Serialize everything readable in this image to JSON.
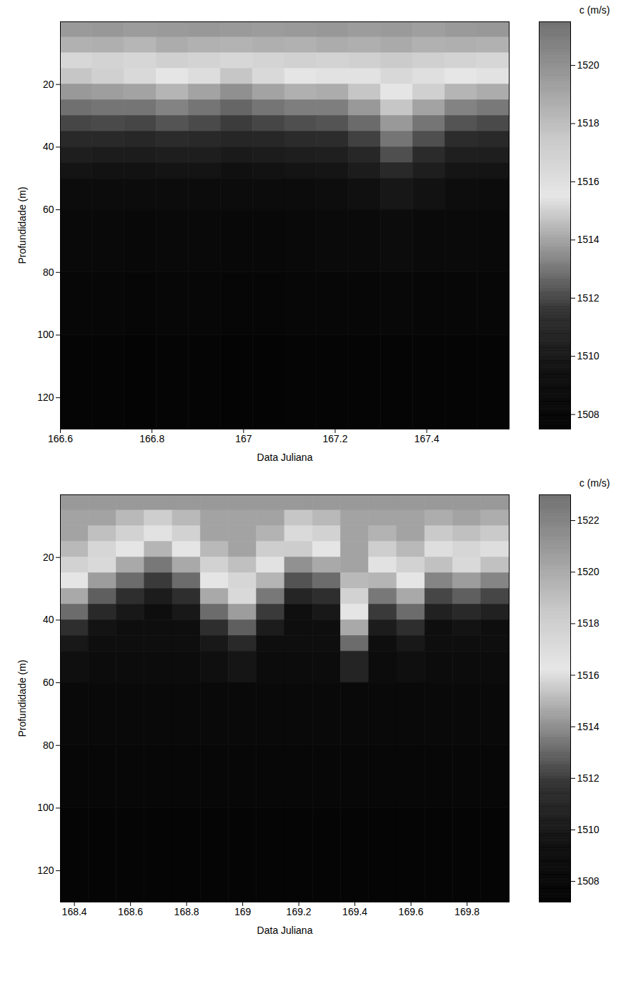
{
  "chart_data": [
    {
      "type": "heatmap",
      "x_label": "Data Juliana",
      "y_label": "Profundidade (m)",
      "xlim": [
        166.6,
        167.58
      ],
      "xticks": [
        166.6,
        166.8,
        167,
        167.2,
        167.4
      ],
      "ylim": [
        0,
        130
      ],
      "yticks": [
        20,
        40,
        60,
        80,
        100,
        120
      ],
      "x_bins": [
        166.6,
        166.67,
        166.74,
        166.81,
        166.88,
        166.95,
        167.02,
        167.09,
        167.16,
        167.23,
        167.3,
        167.37,
        167.44,
        167.51,
        167.58
      ],
      "y_bins": [
        0,
        5,
        10,
        15,
        20,
        25,
        30,
        35,
        40,
        45,
        50,
        60,
        80,
        100,
        130
      ],
      "values": [
        [
          1519.5,
          1519.6,
          1519.4,
          1519.5,
          1519.6,
          1519.5,
          1519.4,
          1519.5,
          1519.6,
          1519.4,
          1519.5,
          1519.3,
          1519.5,
          1519.6
        ],
        [
          1518.5,
          1518.6,
          1518.3,
          1518.7,
          1518.5,
          1518.4,
          1518.6,
          1518.5,
          1518.7,
          1518.6,
          1518.8,
          1518.5,
          1518.6,
          1518.5
        ],
        [
          1516.5,
          1516.8,
          1516.6,
          1517.0,
          1516.8,
          1516.5,
          1516.7,
          1516.9,
          1516.8,
          1517.0,
          1517.3,
          1517.0,
          1516.8,
          1516.6
        ],
        [
          1514.8,
          1515.0,
          1515.2,
          1515.6,
          1515.3,
          1514.8,
          1515.2,
          1515.6,
          1515.4,
          1515.8,
          1516.4,
          1516.0,
          1515.5,
          1515.4
        ],
        [
          1513.8,
          1513.9,
          1514.0,
          1514.4,
          1514.0,
          1513.6,
          1514.0,
          1514.3,
          1514.2,
          1514.8,
          1515.6,
          1515.0,
          1514.4,
          1514.2
        ],
        [
          1512.9,
          1513.0,
          1513.0,
          1513.3,
          1513.0,
          1512.7,
          1513.0,
          1513.2,
          1513.2,
          1513.8,
          1514.8,
          1514.0,
          1513.3,
          1513.1
        ],
        [
          1512.0,
          1512.1,
          1512.0,
          1512.3,
          1512.1,
          1511.8,
          1512.0,
          1512.2,
          1512.3,
          1512.8,
          1513.8,
          1513.0,
          1512.3,
          1512.1
        ],
        [
          1511.2,
          1511.2,
          1511.1,
          1511.3,
          1511.2,
          1511.0,
          1511.1,
          1511.3,
          1511.4,
          1511.9,
          1513.0,
          1512.2,
          1511.4,
          1511.2
        ],
        [
          1510.5,
          1510.4,
          1510.4,
          1510.5,
          1510.5,
          1510.3,
          1510.4,
          1510.5,
          1510.6,
          1511.1,
          1512.2,
          1511.3,
          1510.6,
          1510.5
        ],
        [
          1509.9,
          1509.8,
          1509.8,
          1509.9,
          1509.9,
          1509.7,
          1509.8,
          1509.9,
          1510.0,
          1510.4,
          1511.2,
          1510.5,
          1510.0,
          1509.9
        ],
        [
          1509.4,
          1509.3,
          1509.3,
          1509.4,
          1509.4,
          1509.3,
          1509.3,
          1509.4,
          1509.5,
          1509.7,
          1510.1,
          1509.8,
          1509.5,
          1509.4
        ],
        [
          1508.9,
          1508.9,
          1508.8,
          1508.9,
          1508.9,
          1508.8,
          1508.8,
          1508.9,
          1509.0,
          1509.1,
          1509.3,
          1509.1,
          1509.0,
          1508.9
        ],
        [
          1508.5,
          1508.5,
          1508.4,
          1508.5,
          1508.5,
          1508.4,
          1508.4,
          1508.5,
          1508.5,
          1508.6,
          1508.7,
          1508.6,
          1508.5,
          1508.5
        ],
        [
          1508.2,
          1508.2,
          1508.1,
          1508.2,
          1508.2,
          1508.1,
          1508.1,
          1508.2,
          1508.2,
          1508.2,
          1508.3,
          1508.2,
          1508.2,
          1508.2
        ]
      ],
      "colorbar": {
        "label": "c (m/s)",
        "range": [
          1507.5,
          1521.5
        ],
        "ticks": [
          1508,
          1510,
          1512,
          1514,
          1516,
          1518,
          1520
        ],
        "colors": [
          "#000000",
          "#0d0d0d",
          "#2e2e2e",
          "#8c8c8c",
          "#e6e6e6",
          "#c8c8c8",
          "#9a9a9a",
          "#6e6e6e"
        ]
      }
    },
    {
      "type": "heatmap",
      "x_label": "Data Juliana",
      "y_label": "Profundidade (m)",
      "xlim": [
        168.35,
        169.95
      ],
      "xticks": [
        168.4,
        168.6,
        168.8,
        169,
        169.2,
        169.4,
        169.6,
        169.8
      ],
      "ylim": [
        0,
        130
      ],
      "yticks": [
        20,
        40,
        60,
        80,
        100,
        120
      ],
      "x_bins": [
        168.35,
        168.45,
        168.55,
        168.65,
        168.75,
        168.85,
        168.95,
        169.05,
        169.15,
        169.25,
        169.35,
        169.45,
        169.55,
        169.65,
        169.75,
        169.85,
        169.95
      ],
      "y_bins": [
        0,
        5,
        10,
        15,
        20,
        25,
        30,
        35,
        40,
        45,
        50,
        60,
        80,
        100,
        130
      ],
      "values": [
        [
          1520.8,
          1520.8,
          1520.8,
          1520.8,
          1520.8,
          1520.8,
          1520.8,
          1520.8,
          1520.8,
          1520.8,
          1520.8,
          1520.8,
          1520.8,
          1520.8,
          1520.8,
          1520.8
        ],
        [
          1520.3,
          1520.3,
          1519.2,
          1518.0,
          1519.2,
          1520.3,
          1520.3,
          1520.3,
          1518.6,
          1519.2,
          1520.3,
          1520.3,
          1520.3,
          1519.8,
          1520.3,
          1519.8
        ],
        [
          1520.3,
          1518.9,
          1517.7,
          1516.5,
          1517.7,
          1520.3,
          1520.3,
          1519.5,
          1517.1,
          1517.7,
          1520.3,
          1519.5,
          1520.3,
          1518.3,
          1518.9,
          1518.3
        ],
        [
          1519.2,
          1517.4,
          1516.2,
          1515.0,
          1516.2,
          1519.2,
          1520.3,
          1518.0,
          1515.6,
          1516.2,
          1520.3,
          1518.0,
          1519.2,
          1516.8,
          1517.4,
          1516.8
        ],
        [
          1517.7,
          1515.9,
          1514.7,
          1513.5,
          1514.7,
          1517.7,
          1518.9,
          1516.5,
          1514.1,
          1514.7,
          1520.3,
          1516.5,
          1517.7,
          1515.3,
          1515.9,
          1515.3
        ],
        [
          1516.2,
          1514.4,
          1513.2,
          1512.0,
          1513.2,
          1516.2,
          1517.4,
          1515.0,
          1512.6,
          1513.2,
          1519.2,
          1515.0,
          1516.2,
          1513.8,
          1514.4,
          1513.8
        ],
        [
          1514.7,
          1512.9,
          1511.7,
          1510.5,
          1511.7,
          1514.7,
          1515.9,
          1513.5,
          1511.1,
          1511.7,
          1517.7,
          1513.5,
          1514.7,
          1512.3,
          1512.9,
          1512.3
        ],
        [
          1513.2,
          1511.4,
          1510.2,
          1509.5,
          1510.2,
          1513.2,
          1514.4,
          1512.0,
          1509.6,
          1510.2,
          1516.2,
          1512.0,
          1513.2,
          1510.8,
          1511.4,
          1510.8
        ],
        [
          1511.7,
          1509.9,
          1509.5,
          1509.5,
          1509.5,
          1511.7,
          1512.9,
          1510.5,
          1509.5,
          1509.5,
          1514.7,
          1510.5,
          1511.7,
          1509.5,
          1509.9,
          1509.5
        ],
        [
          1510.2,
          1509.5,
          1509.5,
          1509.5,
          1509.5,
          1510.2,
          1511.4,
          1509.5,
          1509.5,
          1509.5,
          1513.2,
          1509.5,
          1510.2,
          1509.5,
          1509.5,
          1509.5
        ],
        [
          1509.6,
          1509.2,
          1509.2,
          1509.2,
          1509.2,
          1509.6,
          1510.0,
          1509.2,
          1509.2,
          1509.2,
          1511.0,
          1509.2,
          1509.6,
          1509.2,
          1509.2,
          1509.2
        ],
        [
          1508.8,
          1508.8,
          1508.8,
          1508.8,
          1508.8,
          1508.8,
          1508.8,
          1508.8,
          1508.8,
          1508.8,
          1508.8,
          1508.8,
          1508.8,
          1508.8,
          1508.8,
          1508.8
        ],
        [
          1508.4,
          1508.4,
          1508.4,
          1508.4,
          1508.4,
          1508.4,
          1508.4,
          1508.4,
          1508.4,
          1508.4,
          1508.4,
          1508.4,
          1508.4,
          1508.4,
          1508.4,
          1508.4
        ],
        [
          1508.1,
          1508.1,
          1508.1,
          1508.1,
          1508.1,
          1508.1,
          1508.1,
          1508.1,
          1508.1,
          1508.1,
          1508.1,
          1508.1,
          1508.1,
          1508.1,
          1508.1,
          1508.1
        ]
      ],
      "colorbar": {
        "label": "c (m/s)",
        "range": [
          1507.2,
          1523
        ],
        "ticks": [
          1508,
          1510,
          1512,
          1514,
          1516,
          1518,
          1520,
          1522
        ],
        "colors": [
          "#000000",
          "#0d0d0d",
          "#2e2e2e",
          "#8c8c8c",
          "#e6e6e6",
          "#c8c8c8",
          "#9a9a9a",
          "#6e6e6e"
        ]
      }
    }
  ]
}
